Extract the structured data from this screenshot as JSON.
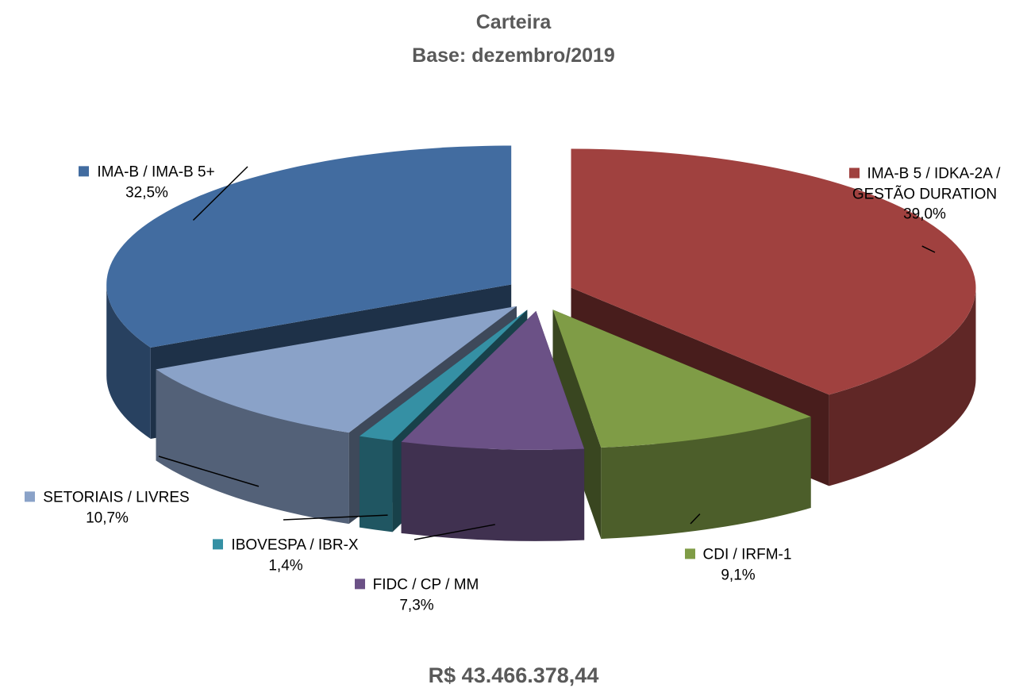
{
  "chart_data": {
    "type": "pie3d",
    "title": "Carteira",
    "subtitle": "Base: dezembro/2019",
    "annotation": "R$ 43.466.378,44",
    "categories": [
      "IMA-B 5 / IDKA-2A / GESTÃO DURATION",
      "CDI / IRFM-1",
      "FIDC / CP / MM",
      "IBOVESPA / IBR-X",
      "SETORIAIS / LIVRES",
      "IMA-B / IMA-B 5+"
    ],
    "values": [
      39.0,
      9.1,
      7.3,
      1.4,
      10.7,
      32.5
    ],
    "value_labels": [
      "39,0%",
      "9,1%",
      "7,3%",
      "1,4%",
      "10,7%",
      "32,5%"
    ],
    "colors": [
      "#a0413f",
      "#7f9c46",
      "#6b5186",
      "#3590a4",
      "#8aa2c8",
      "#426ca0"
    ]
  }
}
